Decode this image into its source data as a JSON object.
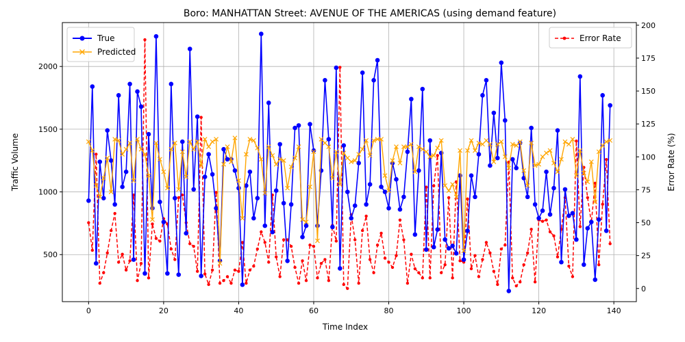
{
  "chart_data": {
    "type": "line",
    "title": "Boro: MANHATTAN Street: AVENUE OF THE AMERICAS (using demand feature)",
    "xlabel": "Time Index",
    "ylabel": "Traffic Volume",
    "y2label": "Error Rate (%)",
    "xlim": [
      -7,
      146
    ],
    "ylim": [
      125,
      2350
    ],
    "y2lim": [
      -10,
      202
    ],
    "xticks": [
      0,
      20,
      40,
      60,
      80,
      100,
      120,
      140
    ],
    "yticks": [
      500,
      1000,
      1500,
      2000
    ],
    "y2ticks": [
      0,
      25,
      50,
      75,
      100,
      125,
      150,
      175,
      200
    ],
    "grid": true,
    "legend_left": {
      "placement": "upper-left",
      "entries": [
        {
          "label": "True",
          "color": "#0000ff",
          "marker": "circle"
        },
        {
          "label": "Predicted",
          "color": "#ffa500",
          "marker": "x"
        }
      ]
    },
    "legend_right": {
      "placement": "upper-right",
      "entries": [
        {
          "label": "Error Rate",
          "color": "#ff0000",
          "marker": "dot",
          "dashed": true
        }
      ]
    },
    "series": [
      {
        "name": "True",
        "color": "#0000ff",
        "values": [
          930,
          1840,
          430,
          1240,
          950,
          1490,
          1250,
          900,
          1770,
          1040,
          1160,
          1860,
          460,
          1800,
          1680,
          350,
          1460,
          870,
          2240,
          920,
          760,
          350,
          1860,
          950,
          340,
          1400,
          670,
          2140,
          1020,
          1600,
          330,
          1120,
          1300,
          1140,
          870,
          450,
          1340,
          1260,
          1260,
          1170,
          1030,
          260,
          1050,
          1160,
          790,
          950,
          2260,
          730,
          1710,
          680,
          1010,
          1380,
          910,
          450,
          900,
          1510,
          1530,
          640,
          730,
          1540,
          1330,
          730,
          1170,
          1890,
          1420,
          720,
          1990,
          390,
          1370,
          1000,
          790,
          890,
          1230,
          1950,
          900,
          1060,
          1890,
          2050,
          1040,
          1000,
          870,
          1230,
          1100,
          860,
          960,
          1320,
          1740,
          660,
          1170,
          1820,
          540,
          1410,
          560,
          700,
          1310,
          620,
          550,
          570,
          510,
          1130,
          460,
          690,
          1130,
          960,
          1300,
          1770,
          1890,
          1210,
          1630,
          1270,
          2030,
          1570,
          210,
          1260,
          1190,
          1390,
          1110,
          960,
          1510,
          900,
          790,
          850,
          1160,
          820,
          1030,
          1490,
          440,
          1020,
          810,
          830,
          620,
          1920,
          420,
          710,
          760,
          300,
          780,
          1770,
          690,
          1690
        ]
      },
      {
        "name": "Predicted",
        "color": "#ffa500",
        "values": [
          1400,
          1330,
          1050,
          960,
          1110,
          1270,
          1000,
          1420,
          1410,
          1300,
          1340,
          1390,
          1090,
          1420,
          1340,
          1300,
          1130,
          780,
          1390,
          1260,
          1160,
          1030,
          1340,
          1390,
          1020,
          1320,
          1120,
          1400,
          1340,
          1400,
          1210,
          1420,
          1360,
          1400,
          1420,
          430,
          1220,
          1360,
          1240,
          1430,
          1090,
          790,
          1300,
          1420,
          1410,
          1350,
          1260,
          990,
          1360,
          1290,
          1220,
          1260,
          1250,
          1030,
          1200,
          1270,
          1360,
          780,
          760,
          1040,
          1320,
          610,
          1420,
          1390,
          1360,
          1110,
          1320,
          1060,
          1310,
          1270,
          1240,
          1250,
          1300,
          1340,
          1410,
          1290,
          1410,
          1420,
          1420,
          1130,
          1010,
          1250,
          1360,
          1230,
          1360,
          1360,
          1380,
          1160,
          1360,
          1340,
          1320,
          1280,
          1290,
          1350,
          1410,
          1050,
          1010,
          1060,
          960,
          1330,
          530,
          1330,
          1410,
          1330,
          1390,
          1380,
          1410,
          1380,
          1240,
          1380,
          1400,
          1280,
          1190,
          1380,
          1370,
          1400,
          1170,
          1050,
          1390,
          1210,
          1220,
          1280,
          1310,
          1330,
          1230,
          1160,
          1260,
          1400,
          1380,
          1420,
          1130,
          1330,
          1150,
          1080,
          1240,
          920,
          1320,
          1370,
          1400,
          1410
        ]
      },
      {
        "name": "Error Rate",
        "axis": "right",
        "color": "#ff0000",
        "values": [
          50,
          29,
          102,
          4,
          12,
          27,
          44,
          57,
          20,
          26,
          14,
          21,
          71,
          6,
          19,
          189,
          8,
          49,
          38,
          36,
          53,
          49,
          30,
          22,
          69,
          71,
          50,
          34,
          32,
          13,
          130,
          11,
          3,
          14,
          73,
          4,
          6,
          9,
          4,
          14,
          13,
          35,
          4,
          14,
          17,
          30,
          43,
          35,
          20,
          71,
          24,
          9,
          37,
          37,
          32,
          16,
          4,
          21,
          6,
          33,
          32,
          8,
          19,
          22,
          6,
          48,
          36,
          168,
          3,
          0,
          56,
          37,
          4,
          44,
          55,
          22,
          12,
          33,
          42,
          23,
          20,
          16,
          25,
          52,
          37,
          4,
          26,
          15,
          12,
          8,
          77,
          8,
          78,
          101,
          12,
          18,
          69,
          8,
          81,
          21,
          20,
          68,
          15,
          25,
          9,
          22,
          35,
          27,
          13,
          3,
          30,
          33,
          96,
          8,
          2,
          5,
          18,
          27,
          45,
          5,
          52,
          51,
          52,
          43,
          40,
          24,
          45,
          69,
          17,
          9,
          112,
          47,
          92,
          69,
          50,
          80,
          18,
          64,
          98,
          34
        ]
      }
    ]
  }
}
